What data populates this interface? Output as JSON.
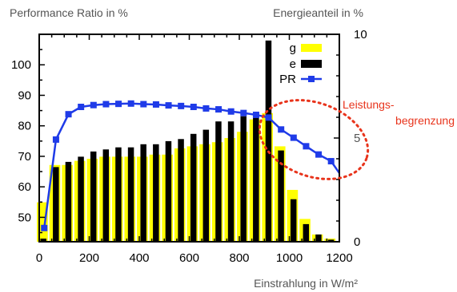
{
  "chart_data": {
    "type": "bar",
    "title": "",
    "ylabel_left": "Performance Ratio in %",
    "ylabel_right": "Energieanteil in %",
    "xlabel": "Einstrahlung in W/m²",
    "xlim": [
      0,
      1200
    ],
    "ylim_left": [
      42,
      110
    ],
    "ylim_right": [
      0,
      10
    ],
    "x_ticks": [
      0,
      200,
      400,
      600,
      800,
      1000,
      1200
    ],
    "y_left_ticks": [
      50,
      60,
      70,
      80,
      90,
      100
    ],
    "y_right_ticks": [
      0,
      5,
      10
    ],
    "grid": false,
    "legend_position": "top-right",
    "annotation": {
      "text_line1": "Leistungs-",
      "text_line2": "begrenzung"
    },
    "colors": {
      "g": "#ffff00",
      "e": "#000000",
      "PR": "#1f3be8",
      "annotation": "#e8341c"
    },
    "x": [
      12.5,
      62.5,
      112.5,
      162.5,
      212.5,
      262.5,
      312.5,
      362.5,
      412.5,
      462.5,
      512.5,
      562.5,
      612.5,
      662.5,
      712.5,
      762.5,
      812.5,
      862.5,
      912.5,
      962.5,
      1012.5,
      1062.5,
      1112.5,
      1162.5
    ],
    "series": [
      {
        "name": "g",
        "type": "bar",
        "axis": "right",
        "values": [
          1.9,
          3.7,
          3.7,
          3.9,
          4.0,
          4.1,
          4.1,
          4.1,
          4.1,
          4.2,
          4.2,
          4.5,
          4.6,
          4.7,
          4.8,
          5.0,
          5.3,
          5.9,
          6.2,
          4.6,
          2.5,
          1.1,
          0.35,
          0.15
        ]
      },
      {
        "name": "e",
        "type": "bar",
        "axis": "right",
        "values": [
          0.15,
          3.6,
          3.85,
          4.1,
          4.35,
          4.45,
          4.55,
          4.55,
          4.7,
          4.7,
          4.85,
          4.95,
          5.2,
          5.4,
          5.8,
          5.8,
          6.05,
          6.2,
          9.7,
          4.4,
          2.05,
          0.85,
          0.35,
          0.1
        ]
      },
      {
        "name": "PR",
        "type": "line",
        "axis": "left",
        "x": [
          20,
          67,
          117,
          167,
          217,
          267,
          317,
          367,
          417,
          467,
          517,
          567,
          617,
          667,
          717,
          767,
          817,
          867,
          917,
          967,
          1017,
          1067,
          1117,
          1167,
          1200
        ],
        "values": [
          46.5,
          75.5,
          83.8,
          86.2,
          86.8,
          87.1,
          87.2,
          87.3,
          87.1,
          87.0,
          86.7,
          86.5,
          86.2,
          85.7,
          85.4,
          84.7,
          84.2,
          83.6,
          82.7,
          78.8,
          76.1,
          73.3,
          70.6,
          68.4,
          64.5
        ]
      }
    ]
  }
}
